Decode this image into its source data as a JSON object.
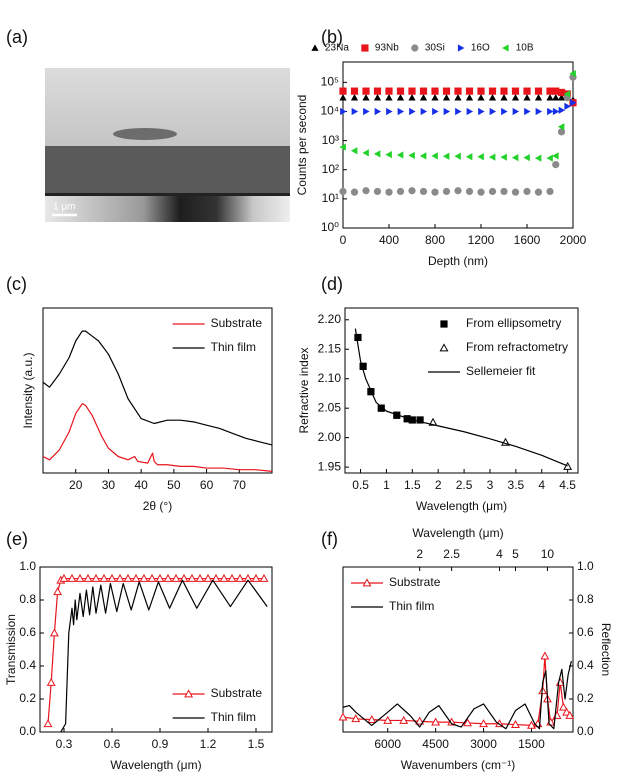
{
  "chart_data": [
    {
      "type": "image",
      "panel_label": "(a)",
      "scale_bar": "1 μm"
    },
    {
      "type": "scatter",
      "panel_label": "(b)",
      "xlabel": "Depth (nm)",
      "ylabel": "Counts per second",
      "xlim": [
        0,
        2000
      ],
      "xticks": [
        0,
        400,
        800,
        1200,
        1600,
        2000
      ],
      "ylim": [
        1,
        500000
      ],
      "yscale": "log",
      "yticks": [
        {
          "value": 1,
          "label": "10⁰"
        },
        {
          "value": 10,
          "label": "10¹"
        },
        {
          "value": 100,
          "label": "10²"
        },
        {
          "value": 1000,
          "label": "10³"
        },
        {
          "value": 10000,
          "label": "10⁴"
        },
        {
          "value": 100000,
          "label": "10⁵"
        }
      ],
      "legend": "top-outside",
      "x": [
        0,
        100,
        200,
        300,
        400,
        500,
        600,
        700,
        800,
        900,
        1000,
        1100,
        1200,
        1300,
        1400,
        1500,
        1600,
        1700,
        1800,
        1850,
        1900,
        1950,
        2000
      ],
      "series": [
        {
          "name": "23Na",
          "color": "#000000",
          "style": "markers",
          "marker": "triangle-up",
          "values": [
            30000,
            30000,
            30000,
            30000,
            30000,
            30000,
            30000,
            30000,
            30000,
            30000,
            30000,
            30000,
            30000,
            30000,
            30000,
            30000,
            30000,
            30000,
            30000,
            30000,
            30000,
            30000,
            25000
          ]
        },
        {
          "name": "93Nb",
          "color": "#e8141b",
          "style": "markers",
          "marker": "square",
          "values": [
            50000,
            50000,
            50000,
            50000,
            50000,
            50000,
            50000,
            50000,
            50000,
            50000,
            50000,
            50000,
            50000,
            50000,
            50000,
            50000,
            50000,
            50000,
            50000,
            50000,
            45000,
            40000,
            20000
          ]
        },
        {
          "name": "30Si",
          "color": "#8a8a8a",
          "style": "markers",
          "marker": "circle",
          "values": [
            18,
            17,
            19,
            18,
            17,
            18,
            19,
            18,
            17,
            18,
            19,
            18,
            17,
            18,
            18,
            17,
            18,
            17,
            18,
            150,
            2000,
            30000,
            150000
          ]
        },
        {
          "name": "16O",
          "color": "#1530e8",
          "style": "markers",
          "marker": "triangle-right",
          "values": [
            10000,
            10000,
            10000,
            10000,
            10000,
            10000,
            10000,
            10000,
            10000,
            10000,
            10000,
            10000,
            10000,
            10000,
            10000,
            10000,
            10000,
            10000,
            10000,
            10000,
            11000,
            15000,
            20000
          ]
        },
        {
          "name": "10B",
          "color": "#22d12a",
          "style": "markers",
          "marker": "triangle-left",
          "values": [
            600,
            450,
            380,
            350,
            330,
            320,
            310,
            300,
            300,
            290,
            290,
            280,
            280,
            270,
            270,
            260,
            260,
            250,
            250,
            300,
            3000,
            40000,
            200000
          ]
        }
      ]
    },
    {
      "type": "line",
      "panel_label": "(c)",
      "xlabel": "2θ (°)",
      "ylabel": "Intensity (a.u.)",
      "xlim": [
        10,
        80
      ],
      "xticks": [
        20,
        30,
        40,
        50,
        60,
        70
      ],
      "ylim": [
        0,
        1
      ],
      "legend": "top-right",
      "series": [
        {
          "name": "Substrate",
          "color": "#e8141b",
          "style": "line",
          "x": [
            10,
            12,
            15,
            18,
            20,
            22,
            23,
            25,
            28,
            30,
            33,
            36,
            38,
            39,
            42,
            43.5,
            44,
            45,
            48,
            52,
            56,
            60,
            65,
            70,
            75,
            80
          ],
          "values": [
            0.1,
            0.08,
            0.14,
            0.25,
            0.36,
            0.42,
            0.41,
            0.35,
            0.22,
            0.15,
            0.1,
            0.08,
            0.1,
            0.07,
            0.06,
            0.12,
            0.07,
            0.05,
            0.05,
            0.04,
            0.04,
            0.03,
            0.03,
            0.02,
            0.02,
            0.01
          ]
        },
        {
          "name": "Thin film",
          "color": "#000000",
          "style": "line",
          "x": [
            10,
            12,
            15,
            18,
            20,
            22,
            23,
            25,
            27,
            30,
            33,
            36,
            40,
            44,
            48,
            52,
            56,
            60,
            64,
            68,
            72,
            76,
            80
          ],
          "values": [
            0.55,
            0.52,
            0.6,
            0.7,
            0.8,
            0.86,
            0.86,
            0.83,
            0.8,
            0.72,
            0.6,
            0.45,
            0.33,
            0.3,
            0.32,
            0.32,
            0.31,
            0.29,
            0.27,
            0.24,
            0.21,
            0.19,
            0.17
          ]
        }
      ]
    },
    {
      "type": "scatter",
      "panel_label": "(d)",
      "xlabel": "Wavelength (μm)",
      "ylabel": "Refractive index",
      "xlim": [
        0.2,
        4.7
      ],
      "xticks": [
        0.5,
        1,
        1.5,
        2,
        2.5,
        3,
        3.5,
        4,
        4.5
      ],
      "ylim": [
        1.94,
        2.22
      ],
      "yticks": [
        1.95,
        {
          "value": 2,
          "label": "2.00"
        },
        2.05,
        {
          "value": 2.1,
          "label": "2.10"
        },
        2.15,
        {
          "value": 2.2,
          "label": "2.20"
        }
      ],
      "legend": "top-right",
      "series": [
        {
          "name": "From ellipsometry",
          "color": "#000000",
          "style": "markers",
          "marker": "square",
          "x": [
            0.45,
            0.55,
            0.7,
            0.9,
            1.2,
            1.4,
            1.5,
            1.65
          ],
          "values": [
            2.17,
            2.121,
            2.078,
            2.05,
            2.038,
            2.032,
            2.03,
            2.03
          ],
          "errors": [
            0.005,
            0.005,
            0.005,
            0.005,
            0.005,
            0.005,
            0.005,
            0.005
          ]
        },
        {
          "name": "From refractometry",
          "color": "#000000",
          "style": "markers",
          "marker": "triangle-open",
          "x": [
            1.9,
            3.3,
            4.5
          ],
          "values": [
            2.026,
            1.992,
            1.951
          ]
        },
        {
          "name": "Sellemeier fit",
          "color": "#000000",
          "style": "line",
          "x": [
            0.4,
            0.5,
            0.6,
            0.8,
            1,
            1.5,
            2,
            2.5,
            3,
            3.5,
            4,
            4.5
          ],
          "values": [
            2.185,
            2.13,
            2.1,
            2.06,
            2.045,
            2.03,
            2.02,
            2.01,
            1.998,
            1.985,
            1.97,
            1.952
          ]
        }
      ]
    },
    {
      "type": "line",
      "panel_label": "(e)",
      "xlabel": "Wavelength (μm)",
      "ylabel": "Transmission",
      "xlim": [
        0.15,
        1.6
      ],
      "xticks": [
        0.3,
        0.6,
        0.9,
        1.2,
        1.5
      ],
      "ylim": [
        0,
        1
      ],
      "yticks": [
        {
          "value": 0,
          "label": "0.0"
        },
        0.2,
        0.4,
        0.6,
        0.8,
        {
          "value": 1,
          "label": "1.0"
        }
      ],
      "legend": "bottom-right",
      "series": [
        {
          "name": "Substrate",
          "color": "#e8141b",
          "style": "line+markers",
          "marker": "triangle-open",
          "x": [
            0.2,
            0.22,
            0.24,
            0.26,
            0.28,
            0.3,
            0.35,
            0.4,
            0.45,
            0.5,
            0.55,
            0.6,
            0.65,
            0.7,
            0.75,
            0.8,
            0.85,
            0.9,
            0.95,
            1,
            1.05,
            1.1,
            1.15,
            1.2,
            1.25,
            1.3,
            1.35,
            1.4,
            1.45,
            1.5,
            1.55
          ],
          "values": [
            0.05,
            0.3,
            0.6,
            0.85,
            0.92,
            0.93,
            0.93,
            0.93,
            0.93,
            0.93,
            0.93,
            0.93,
            0.93,
            0.93,
            0.93,
            0.93,
            0.93,
            0.93,
            0.93,
            0.93,
            0.93,
            0.93,
            0.93,
            0.93,
            0.93,
            0.93,
            0.93,
            0.93,
            0.93,
            0.93,
            0.93
          ]
        },
        {
          "name": "Thin film",
          "color": "#000000",
          "style": "line",
          "x": [
            0.28,
            0.31,
            0.33,
            0.35,
            0.36,
            0.37,
            0.38,
            0.4,
            0.42,
            0.44,
            0.46,
            0.48,
            0.5,
            0.53,
            0.56,
            0.59,
            0.63,
            0.67,
            0.72,
            0.77,
            0.83,
            0.89,
            0.96,
            1.04,
            1.13,
            1.23,
            1.34,
            1.45,
            1.57
          ],
          "values": [
            0,
            0.05,
            0.6,
            0.75,
            0.65,
            0.8,
            0.68,
            0.84,
            0.7,
            0.86,
            0.71,
            0.88,
            0.72,
            0.89,
            0.72,
            0.9,
            0.73,
            0.9,
            0.74,
            0.91,
            0.74,
            0.91,
            0.75,
            0.92,
            0.75,
            0.92,
            0.76,
            0.92,
            0.76
          ]
        }
      ]
    },
    {
      "type": "line",
      "panel_label": "(f)",
      "xlabel": "Wavenumbers (cm⁻¹)",
      "x2label": "Wavelength (μm)",
      "ylabel": "Reflection",
      "yaxis_side": "right",
      "xlim": [
        7400,
        200
      ],
      "xticks": [
        6000,
        4500,
        3000,
        1500
      ],
      "x2ticks": [
        2,
        2.5,
        4,
        5,
        10
      ],
      "ylim": [
        0,
        1
      ],
      "yticks": [
        {
          "value": 0,
          "label": "0.0"
        },
        0.2,
        0.4,
        0.6,
        0.8,
        {
          "value": 1,
          "label": "1.0"
        }
      ],
      "legend": "top-left",
      "series": [
        {
          "name": "Substrate",
          "color": "#e8141b",
          "style": "line+markers",
          "marker": "triangle-open",
          "x": [
            7400,
            7000,
            6500,
            6000,
            5500,
            5000,
            4500,
            4000,
            3500,
            3000,
            2500,
            2000,
            1500,
            1300,
            1150,
            1080,
            1000,
            900,
            700,
            600,
            500,
            400,
            300
          ],
          "values": [
            0.09,
            0.08,
            0.075,
            0.07,
            0.07,
            0.065,
            0.06,
            0.06,
            0.055,
            0.05,
            0.05,
            0.045,
            0.04,
            0.05,
            0.25,
            0.46,
            0.2,
            0.06,
            0.1,
            0.3,
            0.15,
            0.12,
            0.1
          ]
        },
        {
          "name": "Thin film",
          "color": "#000000",
          "style": "line",
          "x": [
            7400,
            7200,
            7000,
            6500,
            6000,
            5700,
            5300,
            5000,
            4700,
            4400,
            4000,
            3700,
            3300,
            3000,
            2600,
            2300,
            2000,
            1700,
            1400,
            1250,
            1150,
            1050,
            950,
            800,
            650,
            550,
            450,
            350,
            250
          ],
          "values": [
            0.15,
            0.16,
            0.12,
            0.04,
            0.12,
            0.17,
            0.1,
            0.03,
            0.12,
            0.16,
            0.05,
            0.03,
            0.14,
            0.17,
            0.06,
            0.02,
            0.13,
            0.17,
            0.05,
            0.02,
            0.3,
            0.37,
            0.05,
            0.02,
            0.3,
            0.38,
            0.2,
            0.35,
            0.43
          ]
        }
      ]
    }
  ]
}
